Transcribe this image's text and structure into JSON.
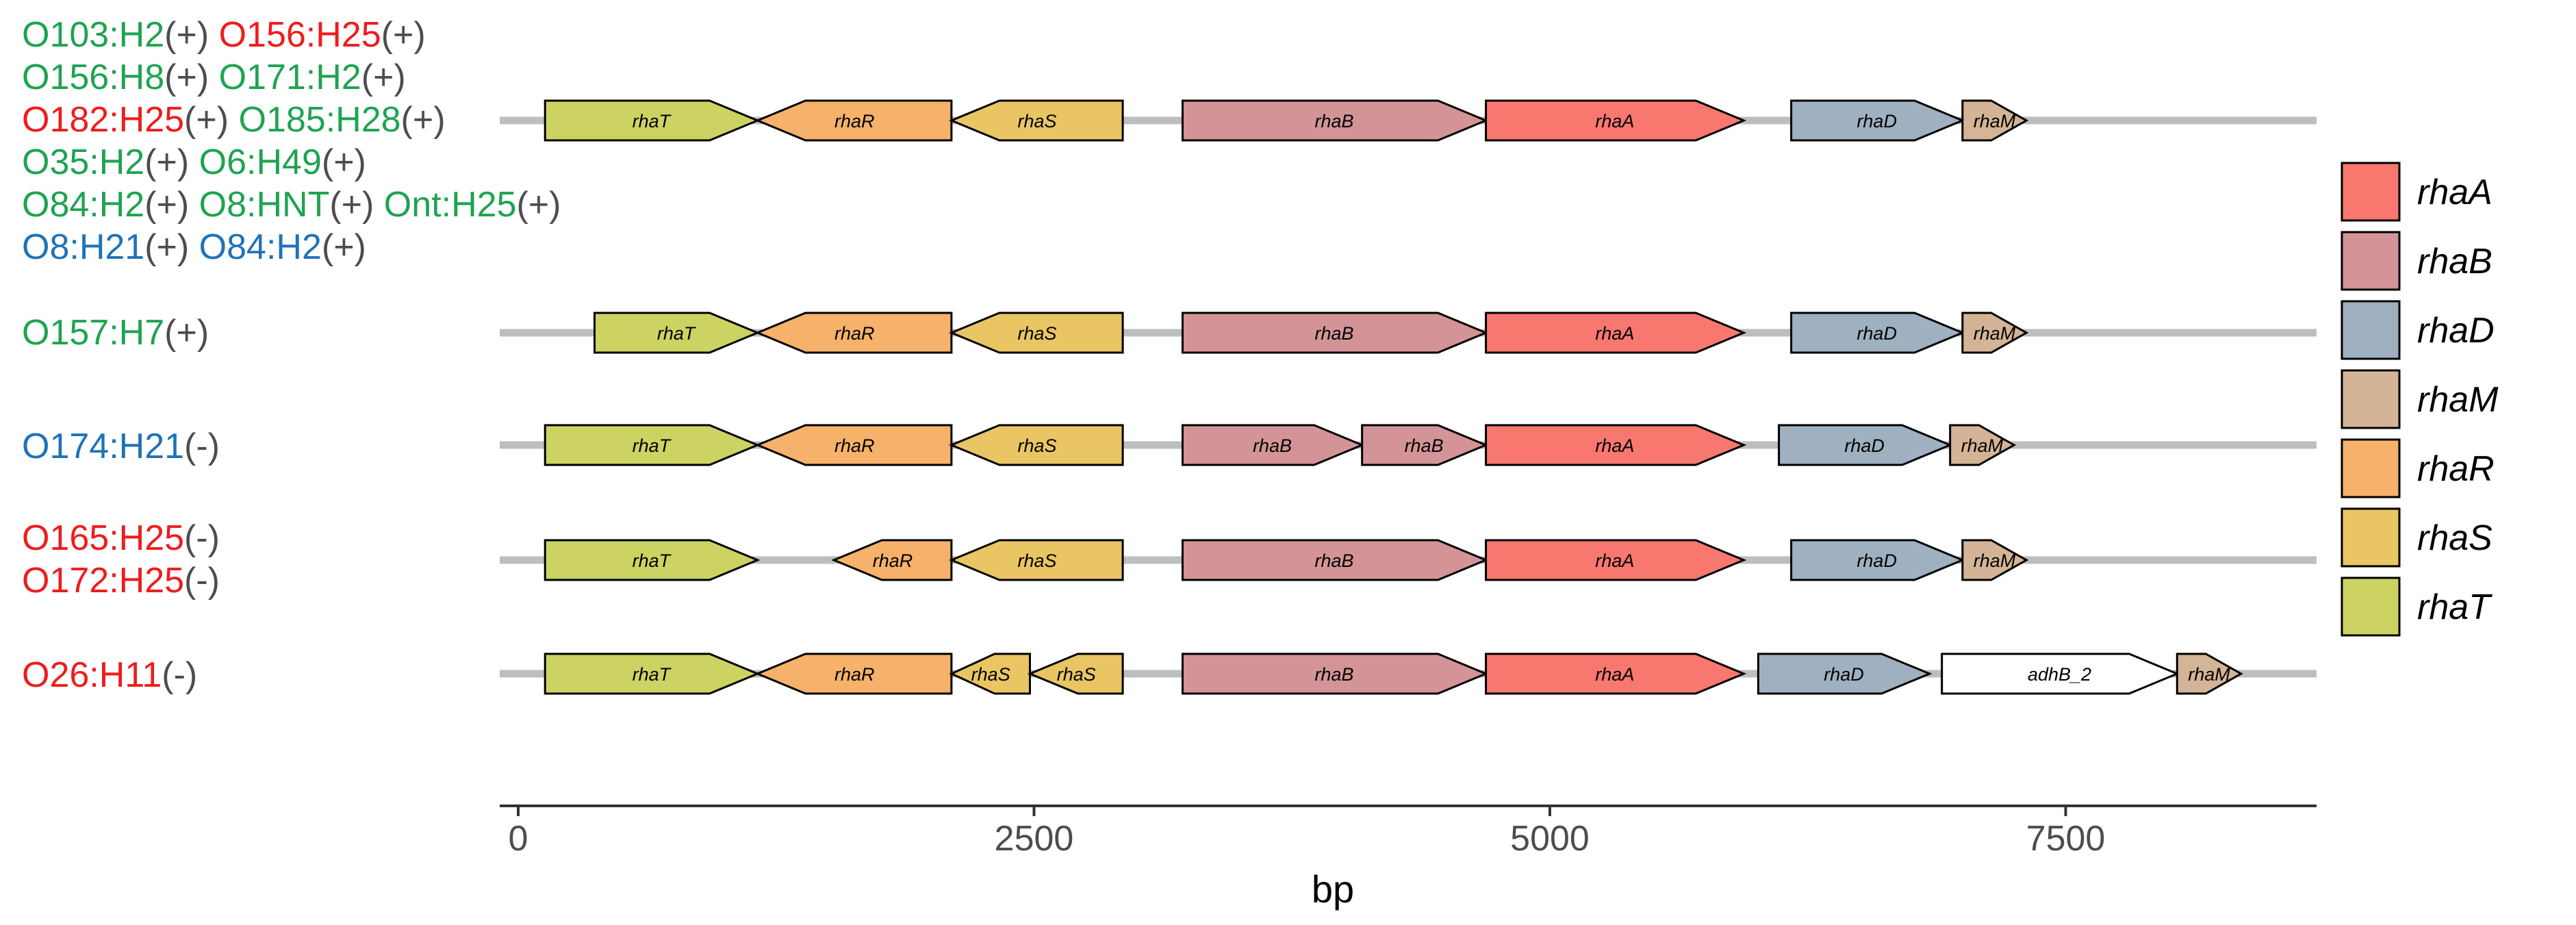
{
  "colors": {
    "green": "#1fa351",
    "red": "#ee1c1c",
    "blue": "#1f72b8",
    "gray_text": "#4d4d4d",
    "track": "#bebebe",
    "axis": "#333333"
  },
  "gene_colors": {
    "rhaA": "#f8786f",
    "rhaB": "#d49497",
    "rhaD": "#9fb0c0",
    "rhaM": "#d4b496",
    "rhaR": "#f6b16a",
    "rhaS": "#e9c564",
    "rhaT": "#ccd362",
    "adhB_2": "#ffffff"
  },
  "chart_data": {
    "type": "gene_arrow_map",
    "xlabel": "bp",
    "xlim": [
      -100,
      8760
    ],
    "xticks": [
      0,
      2500,
      5000,
      7500
    ],
    "x_tick_labels": [
      "0",
      "2500",
      "5000",
      "7500"
    ],
    "grid": false,
    "legend_position": "right",
    "legend": [
      {
        "gene": "rhaA",
        "label": "rhaA"
      },
      {
        "gene": "rhaB",
        "label": "rhaB"
      },
      {
        "gene": "rhaD",
        "label": "rhaD"
      },
      {
        "gene": "rhaM",
        "label": "rhaM"
      },
      {
        "gene": "rhaR",
        "label": "rhaR"
      },
      {
        "gene": "rhaS",
        "label": "rhaS"
      },
      {
        "gene": "rhaT",
        "label": "rhaT"
      }
    ],
    "tracks": [
      {
        "label_rows": [
          [
            {
              "serotype": "O103:H2",
              "color": "green",
              "sign": "(+)"
            },
            {
              "serotype": "O156:H25",
              "color": "red",
              "sign": "(+)"
            }
          ],
          [
            {
              "serotype": "O156:H8",
              "color": "green",
              "sign": "(+)"
            },
            {
              "serotype": "O171:H2",
              "color": "green",
              "sign": "(+)"
            }
          ],
          [
            {
              "serotype": "O182:H25",
              "color": "red",
              "sign": "(+)"
            },
            {
              "serotype": "O185:H28",
              "color": "green",
              "sign": "(+)"
            }
          ],
          [
            {
              "serotype": "O35:H2",
              "color": "green",
              "sign": "(+)"
            },
            {
              "serotype": "O6:H49",
              "color": "green",
              "sign": "(+)"
            }
          ],
          [
            {
              "serotype": "O84:H2",
              "color": "green",
              "sign": "(+)"
            },
            {
              "serotype": "O8:HNT",
              "color": "green",
              "sign": "(+)"
            },
            {
              "serotype": "Ont:H25",
              "color": "green",
              "sign": "(+)"
            }
          ],
          [
            {
              "serotype": "O8:H21",
              "color": "blue",
              "sign": "(+)"
            },
            {
              "serotype": "O84:H2",
              "color": "blue",
              "sign": "(+)"
            }
          ]
        ],
        "genes": [
          {
            "gene": "rhaT",
            "label": "rhaT",
            "start": 130,
            "end": 1160,
            "strand": "+"
          },
          {
            "gene": "rhaR",
            "label": "rhaR",
            "start": 1160,
            "end": 2100,
            "strand": "-"
          },
          {
            "gene": "rhaS",
            "label": "rhaS",
            "start": 2100,
            "end": 2930,
            "strand": "-"
          },
          {
            "gene": "rhaB",
            "label": "rhaB",
            "start": 3220,
            "end": 4690,
            "strand": "+"
          },
          {
            "gene": "rhaA",
            "label": "rhaA",
            "start": 4690,
            "end": 5940,
            "strand": "+"
          },
          {
            "gene": "rhaD",
            "label": "rhaD",
            "start": 6170,
            "end": 7000,
            "strand": "+"
          },
          {
            "gene": "rhaM",
            "label": "rhaM",
            "start": 7000,
            "end": 7310,
            "strand": "+"
          }
        ]
      },
      {
        "label_rows": [
          [
            {
              "serotype": "O157:H7",
              "color": "green",
              "sign": "(+)"
            }
          ]
        ],
        "genes": [
          {
            "gene": "rhaT",
            "label": "rhaT",
            "start": 370,
            "end": 1160,
            "strand": "+"
          },
          {
            "gene": "rhaR",
            "label": "rhaR",
            "start": 1160,
            "end": 2100,
            "strand": "-"
          },
          {
            "gene": "rhaS",
            "label": "rhaS",
            "start": 2100,
            "end": 2930,
            "strand": "-"
          },
          {
            "gene": "rhaB",
            "label": "rhaB",
            "start": 3220,
            "end": 4690,
            "strand": "+"
          },
          {
            "gene": "rhaA",
            "label": "rhaA",
            "start": 4690,
            "end": 5940,
            "strand": "+"
          },
          {
            "gene": "rhaD",
            "label": "rhaD",
            "start": 6170,
            "end": 7000,
            "strand": "+"
          },
          {
            "gene": "rhaM",
            "label": "rhaM",
            "start": 7000,
            "end": 7310,
            "strand": "+"
          }
        ]
      },
      {
        "label_rows": [
          [
            {
              "serotype": "O174:H21",
              "color": "blue",
              "sign": "(-)"
            }
          ]
        ],
        "genes": [
          {
            "gene": "rhaT",
            "label": "rhaT",
            "start": 130,
            "end": 1160,
            "strand": "+"
          },
          {
            "gene": "rhaR",
            "label": "rhaR",
            "start": 1160,
            "end": 2100,
            "strand": "-"
          },
          {
            "gene": "rhaS",
            "label": "rhaS",
            "start": 2100,
            "end": 2930,
            "strand": "-"
          },
          {
            "gene": "rhaB",
            "label": "rhaB",
            "start": 3220,
            "end": 4090,
            "strand": "+"
          },
          {
            "gene": "rhaB",
            "label": "rhaB",
            "start": 4090,
            "end": 4690,
            "strand": "+"
          },
          {
            "gene": "rhaA",
            "label": "rhaA",
            "start": 4690,
            "end": 5940,
            "strand": "+"
          },
          {
            "gene": "rhaD",
            "label": "rhaD",
            "start": 6110,
            "end": 6940,
            "strand": "+"
          },
          {
            "gene": "rhaM",
            "label": "rhaM",
            "start": 6940,
            "end": 7250,
            "strand": "+"
          }
        ]
      },
      {
        "label_rows": [
          [
            {
              "serotype": "O165:H25",
              "color": "red",
              "sign": "(-)"
            }
          ],
          [
            {
              "serotype": "O172:H25",
              "color": "red",
              "sign": "(-)"
            }
          ]
        ],
        "genes": [
          {
            "gene": "rhaT",
            "label": "rhaT",
            "start": 130,
            "end": 1160,
            "strand": "+"
          },
          {
            "gene": "rhaR",
            "label": "rhaR",
            "start": 1530,
            "end": 2100,
            "strand": "-"
          },
          {
            "gene": "rhaS",
            "label": "rhaS",
            "start": 2100,
            "end": 2930,
            "strand": "-"
          },
          {
            "gene": "rhaB",
            "label": "rhaB",
            "start": 3220,
            "end": 4690,
            "strand": "+"
          },
          {
            "gene": "rhaA",
            "label": "rhaA",
            "start": 4690,
            "end": 5940,
            "strand": "+"
          },
          {
            "gene": "rhaD",
            "label": "rhaD",
            "start": 6170,
            "end": 7000,
            "strand": "+"
          },
          {
            "gene": "rhaM",
            "label": "rhaM",
            "start": 7000,
            "end": 7310,
            "strand": "+"
          }
        ]
      },
      {
        "label_rows": [
          [
            {
              "serotype": "O26:H11",
              "color": "red",
              "sign": "(-)"
            }
          ]
        ],
        "genes": [
          {
            "gene": "rhaT",
            "label": "rhaT",
            "start": 130,
            "end": 1160,
            "strand": "+"
          },
          {
            "gene": "rhaR",
            "label": "rhaR",
            "start": 1160,
            "end": 2100,
            "strand": "-"
          },
          {
            "gene": "rhaS",
            "label": "rhaS",
            "start": 2100,
            "end": 2480,
            "strand": "-"
          },
          {
            "gene": "rhaS",
            "label": "rhaS",
            "start": 2480,
            "end": 2930,
            "strand": "-"
          },
          {
            "gene": "rhaB",
            "label": "rhaB",
            "start": 3220,
            "end": 4690,
            "strand": "+"
          },
          {
            "gene": "rhaA",
            "label": "rhaA",
            "start": 4690,
            "end": 5940,
            "strand": "+"
          },
          {
            "gene": "rhaD",
            "label": "rhaD",
            "start": 6010,
            "end": 6840,
            "strand": "+"
          },
          {
            "gene": "adhB_2",
            "label": "adhB_2",
            "start": 6900,
            "end": 8040,
            "strand": "+"
          },
          {
            "gene": "rhaM",
            "label": "rhaM",
            "start": 8040,
            "end": 8350,
            "strand": "+"
          }
        ]
      }
    ]
  }
}
